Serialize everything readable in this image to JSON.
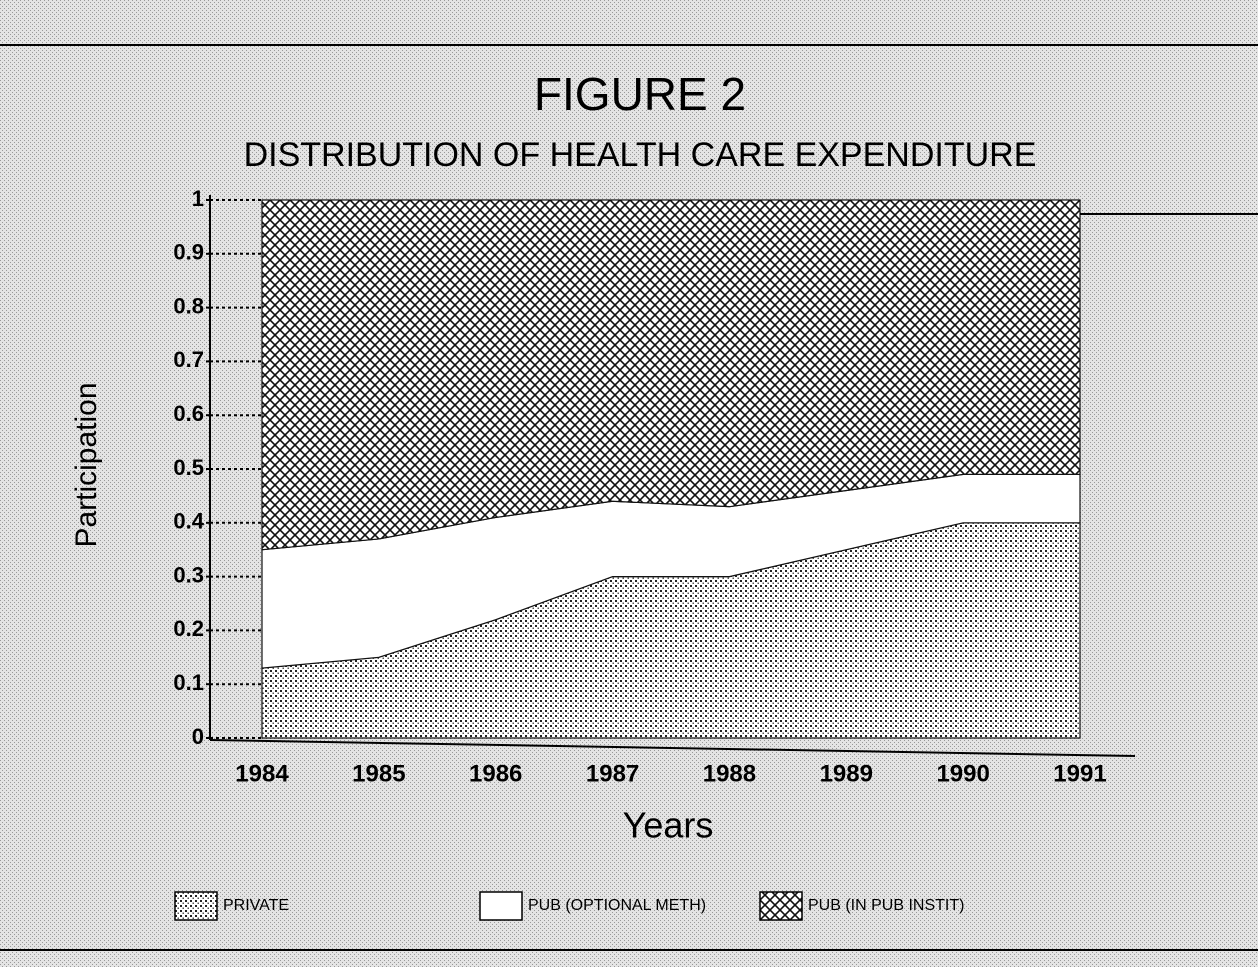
{
  "chart_data": {
    "type": "stacked_area",
    "title": "FIGURE 2",
    "subtitle": "DISTRIBUTION OF HEALTH CARE EXPENDITURE",
    "x_label": "Years",
    "y_label": "Participation",
    "categories": [
      "1984",
      "1985",
      "1986",
      "1987",
      "1988",
      "1989",
      "1990",
      "1991"
    ],
    "series": [
      {
        "name": "PRIVATE",
        "color": "dots",
        "values": [
          0.13,
          0.15,
          0.22,
          0.3,
          0.3,
          0.35,
          0.4,
          0.4
        ]
      },
      {
        "name": "PUB (OPTIONAL METH)",
        "color": "white",
        "values": [
          0.22,
          0.22,
          0.19,
          0.14,
          0.13,
          0.11,
          0.09,
          0.09
        ]
      },
      {
        "name": "PUB (IN PUB INSTIT)",
        "color": "crosshatch",
        "values": [
          0.65,
          0.63,
          0.59,
          0.56,
          0.57,
          0.54,
          0.51,
          0.51
        ]
      }
    ],
    "ylim": [
      0,
      1
    ],
    "yticks": [
      0,
      0.1,
      0.2,
      0.3,
      0.4,
      0.5,
      0.6,
      0.7,
      0.8,
      0.9,
      1
    ],
    "grid": true,
    "legend": "bottom"
  }
}
